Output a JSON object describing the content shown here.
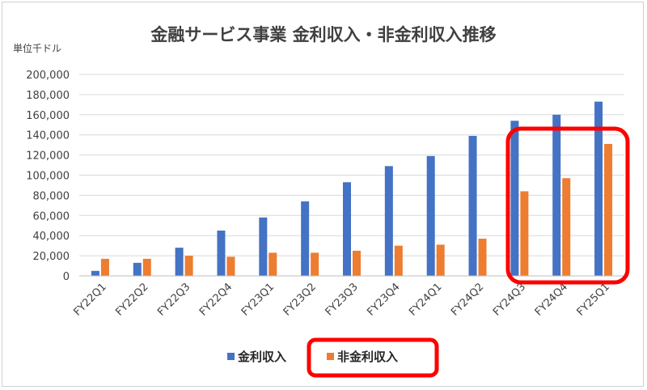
{
  "chart_data": {
    "type": "bar",
    "title": "金融サービス事業 金利収入・非金利収入推移",
    "unit_label": "単位千ドル",
    "categories": [
      "FY22Q1",
      "FY22Q2",
      "FY22Q3",
      "FY22Q4",
      "FY23Q1",
      "FY23Q2",
      "FY23Q3",
      "FY23Q4",
      "FY24Q1",
      "FY24Q2",
      "FY24Q3",
      "FY24Q4",
      "FY25Q1"
    ],
    "series": [
      {
        "name": "金利収入",
        "color": "#4472c4",
        "values": [
          5000,
          13000,
          28000,
          45000,
          58000,
          74000,
          93000,
          109000,
          119000,
          139000,
          154000,
          160000,
          173000
        ]
      },
      {
        "name": "非金利収入",
        "color": "#ed7d31",
        "values": [
          17000,
          17000,
          20000,
          19000,
          23000,
          23000,
          25000,
          30000,
          31000,
          37000,
          84000,
          97000,
          131000
        ]
      }
    ],
    "yticks": [
      "0",
      "20,000",
      "40,000",
      "60,000",
      "80,000",
      "100,000",
      "120,000",
      "140,000",
      "160,000",
      "180,000",
      "200,000"
    ],
    "ylim": [
      0,
      200000
    ],
    "grid": true,
    "legend": "bottom",
    "highlight_color": "#ff0000"
  }
}
